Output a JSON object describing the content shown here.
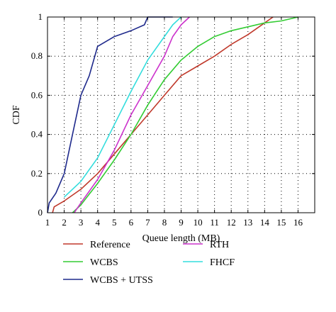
{
  "chart_data": {
    "type": "line",
    "xlabel": "Queue length (MB)",
    "ylabel": "CDF",
    "xlim": [
      1,
      17
    ],
    "ylim": [
      0,
      1
    ],
    "xticks": [
      1,
      2,
      3,
      4,
      5,
      6,
      7,
      8,
      9,
      10,
      11,
      12,
      13,
      14,
      15,
      16
    ],
    "yticks": [
      0,
      0.2,
      0.4,
      0.6,
      0.8,
      1
    ],
    "grid": true,
    "grid_style": "dotted",
    "legend_placement": "below",
    "series": [
      {
        "name": "Reference",
        "color": "#c0392b",
        "points": [
          [
            1.3,
            0
          ],
          [
            1.4,
            0.03
          ],
          [
            2,
            0.06
          ],
          [
            3,
            0.12
          ],
          [
            4,
            0.2
          ],
          [
            5,
            0.3
          ],
          [
            6,
            0.4
          ],
          [
            7,
            0.5
          ],
          [
            8,
            0.6
          ],
          [
            9,
            0.7
          ],
          [
            10,
            0.75
          ],
          [
            11,
            0.8
          ],
          [
            12,
            0.86
          ],
          [
            13,
            0.91
          ],
          [
            14,
            0.97
          ],
          [
            14.5,
            1
          ]
        ]
      },
      {
        "name": "WCBS",
        "color": "#33cc33",
        "points": [
          [
            2.5,
            0
          ],
          [
            3,
            0.04
          ],
          [
            4,
            0.15
          ],
          [
            5,
            0.27
          ],
          [
            6,
            0.4
          ],
          [
            7,
            0.55
          ],
          [
            8,
            0.68
          ],
          [
            9,
            0.78
          ],
          [
            10,
            0.85
          ],
          [
            11,
            0.9
          ],
          [
            12,
            0.93
          ],
          [
            13,
            0.95
          ],
          [
            14,
            0.97
          ],
          [
            15,
            0.98
          ],
          [
            16,
            1
          ]
        ]
      },
      {
        "name": "WCBS + UTSS",
        "color": "#1f2a8c",
        "points": [
          [
            1,
            0
          ],
          [
            1.1,
            0.05
          ],
          [
            1.5,
            0.1
          ],
          [
            2,
            0.2
          ],
          [
            2.5,
            0.4
          ],
          [
            3,
            0.6
          ],
          [
            3.5,
            0.7
          ],
          [
            4,
            0.85
          ],
          [
            5,
            0.9
          ],
          [
            6,
            0.93
          ],
          [
            6.8,
            0.96
          ],
          [
            7,
            1
          ],
          [
            8.5,
            1
          ]
        ]
      },
      {
        "name": "RTH",
        "color": "#cc33cc",
        "points": [
          [
            2.6,
            0
          ],
          [
            3,
            0.05
          ],
          [
            4,
            0.17
          ],
          [
            5,
            0.32
          ],
          [
            6,
            0.5
          ],
          [
            7,
            0.65
          ],
          [
            8,
            0.8
          ],
          [
            8.5,
            0.9
          ],
          [
            9,
            0.96
          ],
          [
            9.5,
            1
          ]
        ]
      },
      {
        "name": "FHCF",
        "color": "#33dddd",
        "points": [
          [
            2,
            0.08
          ],
          [
            3,
            0.16
          ],
          [
            4,
            0.28
          ],
          [
            5,
            0.45
          ],
          [
            6,
            0.62
          ],
          [
            7,
            0.78
          ],
          [
            8,
            0.9
          ],
          [
            8.5,
            0.96
          ],
          [
            9,
            1
          ]
        ]
      }
    ]
  }
}
